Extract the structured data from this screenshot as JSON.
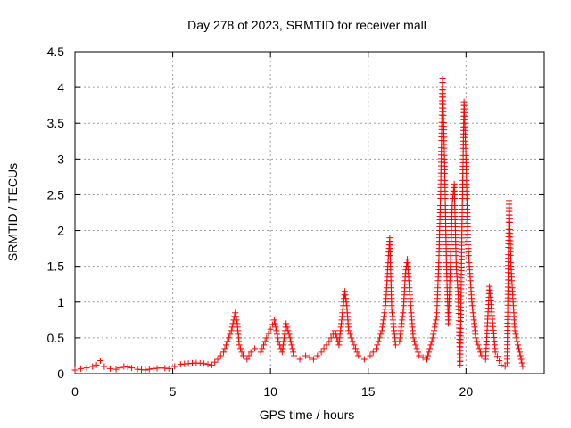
{
  "chart_data": {
    "type": "scatter",
    "title": "Day 278 of 2023, SRMTID for receiver mall",
    "xlabel": "GPS time / hours",
    "ylabel": "SRMTID / TECUs",
    "xlim": [
      0,
      24
    ],
    "ylim": [
      0,
      4.5
    ],
    "xticks": [
      0,
      5,
      10,
      15,
      20
    ],
    "xtick_labels": [
      "0",
      "5",
      "10",
      "15",
      "20"
    ],
    "yticks": [
      0,
      0.5,
      1,
      1.5,
      2,
      2.5,
      3,
      3.5,
      4,
      4.5
    ],
    "ytick_labels": [
      "0",
      "0.5",
      "1",
      "1.5",
      "2",
      "2.5",
      "3",
      "3.5",
      "4",
      "4.5"
    ],
    "grid": true,
    "marker": "+",
    "series": [
      {
        "name": "SRMTID",
        "color": "#ff0000",
        "x": [
          0.0,
          0.3,
          0.6,
          0.9,
          1.1,
          1.3,
          1.5,
          1.8,
          2.1,
          2.5,
          2.9,
          3.2,
          3.6,
          4.0,
          4.4,
          4.8,
          5.1,
          5.4,
          5.8,
          6.2,
          6.6,
          7.0,
          7.3,
          7.6,
          7.8,
          8.0,
          8.2,
          8.3,
          8.4,
          8.6,
          8.8,
          9.0,
          9.2,
          9.5,
          9.8,
          10.0,
          10.2,
          10.4,
          10.6,
          10.8,
          11.0,
          11.2,
          11.5,
          11.8,
          12.2,
          12.6,
          13.0,
          13.3,
          13.5,
          13.7,
          13.8,
          13.9,
          14.0,
          14.2,
          14.5,
          14.8,
          15.1,
          15.4,
          15.7,
          15.9,
          16.0,
          16.1,
          16.2,
          16.4,
          16.6,
          16.8,
          16.9,
          17.0,
          17.1,
          17.3,
          17.6,
          18.0,
          18.3,
          18.5,
          18.6,
          18.7,
          18.8,
          18.9,
          19.0,
          19.1,
          19.2,
          19.3,
          19.4,
          19.5,
          19.6,
          19.7,
          19.8,
          19.9,
          20.0,
          20.1,
          20.3,
          20.5,
          20.8,
          21.0,
          21.2,
          21.5,
          21.8,
          22.0,
          22.1,
          22.2,
          22.3,
          22.5,
          22.7,
          22.9
        ],
        "y": [
          0.05,
          0.07,
          0.08,
          0.1,
          0.12,
          0.18,
          0.1,
          0.07,
          0.06,
          0.1,
          0.08,
          0.06,
          0.05,
          0.07,
          0.08,
          0.07,
          0.1,
          0.13,
          0.14,
          0.15,
          0.14,
          0.12,
          0.2,
          0.3,
          0.45,
          0.6,
          0.85,
          0.7,
          0.4,
          0.25,
          0.2,
          0.3,
          0.35,
          0.3,
          0.5,
          0.62,
          0.75,
          0.45,
          0.3,
          0.7,
          0.5,
          0.25,
          0.2,
          0.25,
          0.2,
          0.3,
          0.45,
          0.6,
          0.4,
          0.9,
          1.15,
          0.95,
          0.6,
          0.45,
          0.25,
          0.2,
          0.25,
          0.35,
          0.6,
          1.0,
          1.5,
          1.9,
          0.9,
          0.4,
          0.45,
          0.9,
          1.4,
          1.6,
          1.2,
          0.5,
          0.25,
          0.2,
          0.5,
          0.8,
          1.5,
          2.5,
          4.12,
          3.0,
          1.5,
          0.7,
          1.5,
          2.4,
          2.65,
          1.5,
          1.1,
          0.12,
          2.2,
          3.8,
          3.0,
          1.8,
          1.0,
          0.5,
          0.25,
          0.2,
          1.22,
          0.3,
          0.12,
          0.1,
          0.15,
          2.42,
          1.5,
          0.6,
          0.35,
          0.1
        ]
      }
    ]
  }
}
